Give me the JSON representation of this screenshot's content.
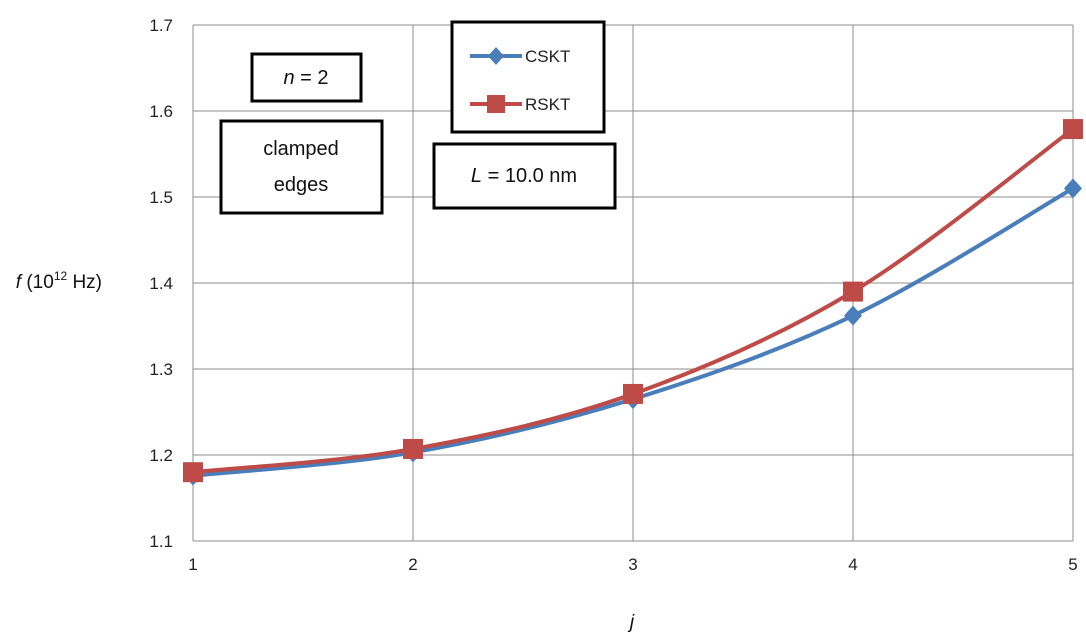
{
  "chart_data": {
    "type": "line",
    "x": [
      1,
      2,
      3,
      4,
      5
    ],
    "xlim": [
      1,
      5
    ],
    "ylim": [
      1.1,
      1.7
    ],
    "x_ticks": [
      "1",
      "2",
      "3",
      "4",
      "5"
    ],
    "y_ticks": [
      "1.1",
      "1.2",
      "1.3",
      "1.4",
      "1.5",
      "1.6",
      "1.7"
    ],
    "xlabel": "j",
    "ylabel": {
      "var": "f",
      "prefix": " (10",
      "exp": "12",
      "suffix": " Hz)"
    },
    "grid": true,
    "legend_position": "top-center",
    "series": [
      {
        "name": "CSKT",
        "marker": "diamond",
        "color": "#4a7ebb",
        "values": [
          1.176,
          1.203,
          1.265,
          1.362,
          1.51
        ]
      },
      {
        "name": "RSKT",
        "marker": "square",
        "color": "#be4b48",
        "values": [
          1.18,
          1.207,
          1.271,
          1.39,
          1.579
        ]
      }
    ],
    "annotations": {
      "n_label": {
        "var": "n",
        "rest": " = 2"
      },
      "edges_label": [
        "clamped",
        "edges"
      ],
      "length_label": {
        "var": "L",
        "rest": " = 10.0 nm"
      }
    }
  }
}
